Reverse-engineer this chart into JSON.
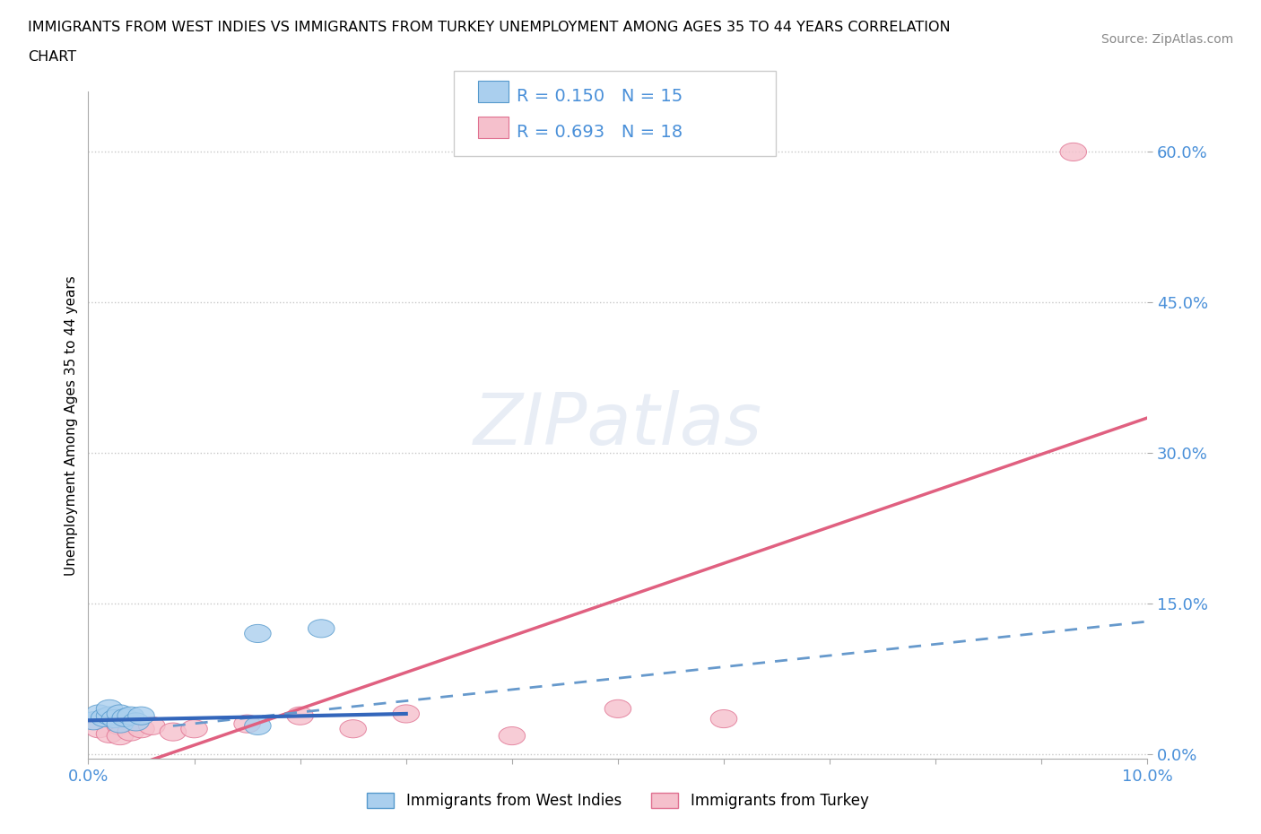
{
  "title_line1": "IMMIGRANTS FROM WEST INDIES VS IMMIGRANTS FROM TURKEY UNEMPLOYMENT AMONG AGES 35 TO 44 YEARS CORRELATION",
  "title_line2": "CHART",
  "source_text": "Source: ZipAtlas.com",
  "ylabel": "Unemployment Among Ages 35 to 44 years",
  "watermark": "ZIPatlas",
  "xlim": [
    0.0,
    0.1
  ],
  "ylim": [
    -0.005,
    0.66
  ],
  "ytick_positions": [
    0.0,
    0.15,
    0.3,
    0.45,
    0.6
  ],
  "ytick_labels": [
    "0.0%",
    "15.0%",
    "30.0%",
    "45.0%",
    "60.0%"
  ],
  "xtick_positions": [
    0.0,
    0.01,
    0.02,
    0.03,
    0.04,
    0.05,
    0.06,
    0.07,
    0.08,
    0.09,
    0.1
  ],
  "xtick_labels": [
    "0.0%",
    "",
    "",
    "",
    "",
    "",
    "",
    "",
    "",
    "",
    "10.0%"
  ],
  "west_indies_x": [
    0.0005,
    0.001,
    0.0015,
    0.002,
    0.002,
    0.0025,
    0.003,
    0.003,
    0.0035,
    0.004,
    0.0045,
    0.005,
    0.016,
    0.022,
    0.016
  ],
  "west_indies_y": [
    0.033,
    0.04,
    0.036,
    0.038,
    0.045,
    0.035,
    0.03,
    0.04,
    0.036,
    0.038,
    0.032,
    0.038,
    0.12,
    0.125,
    0.028
  ],
  "turkey_x": [
    0.001,
    0.002,
    0.003,
    0.003,
    0.004,
    0.004,
    0.005,
    0.006,
    0.008,
    0.01,
    0.015,
    0.02,
    0.025,
    0.03,
    0.04,
    0.05,
    0.06,
    0.093
  ],
  "turkey_y": [
    0.025,
    0.02,
    0.028,
    0.018,
    0.032,
    0.022,
    0.025,
    0.028,
    0.022,
    0.025,
    0.03,
    0.038,
    0.025,
    0.04,
    0.018,
    0.045,
    0.035,
    0.6
  ],
  "west_indies_color": "#aacfee",
  "west_indies_edge_color": "#5599cc",
  "turkey_color": "#f5c0cc",
  "turkey_edge_color": "#e07090",
  "west_indies_R": 0.15,
  "west_indies_N": 15,
  "turkey_R": 0.693,
  "turkey_N": 18,
  "trend_blue_solid_color": "#3366bb",
  "trend_blue_dashed_color": "#6699cc",
  "trend_pink_color": "#e06080",
  "legend_label_west": "Immigrants from West Indies",
  "legend_label_turkey": "Immigrants from Turkey",
  "background_color": "#ffffff",
  "grid_color": "#bbbbbb",
  "tick_color": "#4A90D9"
}
